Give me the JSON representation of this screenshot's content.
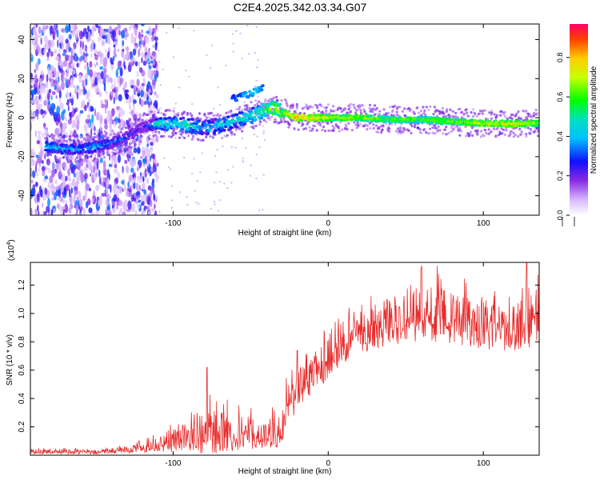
{
  "title": "C2E4.2025.342.03.34.G07",
  "chart_data": [
    {
      "type": "heatmap",
      "xlabel": "Height of straight line (km)",
      "ylabel": "Frequency (Hz)",
      "xlim": [
        -192,
        136
      ],
      "ylim": [
        -50,
        48
      ],
      "xticks": [
        -100,
        0,
        100
      ],
      "yticks": [
        -40,
        -20,
        0,
        20,
        40
      ],
      "colorbar": {
        "label": "Normalized spectral amplitude",
        "range": [
          0,
          0.97
        ],
        "ticks": [
          0.0,
          0.2,
          0.4,
          0.6,
          0.8
        ],
        "tick_labels": [
          "0.0",
          "0.2",
          "0.4",
          "0.6",
          "0.8"
        ]
      },
      "ridge": {
        "x": [
          -180,
          -170,
          -160,
          -150,
          -140,
          -130,
          -120,
          -110,
          -100,
          -90,
          -80,
          -70,
          -60,
          -50,
          -40,
          -35,
          -30,
          -20,
          -10,
          0,
          20,
          40,
          60,
          80,
          100,
          120,
          135
        ],
        "freq": [
          -15,
          -16,
          -16,
          -15,
          -13,
          -10,
          -5,
          -3,
          -3,
          -4,
          -5,
          -4,
          -2,
          1,
          4,
          5,
          3,
          0,
          0,
          0,
          0,
          -1,
          -1,
          -2,
          -3,
          -3,
          -3
        ],
        "amplitude": [
          0.45,
          0.4,
          0.4,
          0.4,
          0.35,
          0.3,
          0.2,
          0.5,
          0.45,
          0.5,
          0.4,
          0.45,
          0.45,
          0.5,
          0.6,
          0.7,
          0.65,
          0.85,
          0.8,
          0.75,
          0.7,
          0.65,
          0.65,
          0.7,
          0.75,
          0.8,
          0.7
        ]
      },
      "upper_branch": {
        "x": [
          -62,
          -55,
          -48,
          -42
        ],
        "freq": [
          10,
          11,
          13,
          15
        ],
        "amplitude": [
          0.3,
          0.35,
          0.4,
          0.3
        ]
      },
      "noise_region_x": [
        -192,
        -110
      ]
    },
    {
      "type": "line",
      "xlabel": "Height of straight line (km)",
      "ylabel": "SNR (10 * v/v)",
      "yscale_label": "(x10",
      "yscale_exponent": "4",
      "xlim": [
        -192,
        136
      ],
      "ylim": [
        0,
        1.36
      ],
      "xticks": [
        -100,
        0,
        100
      ],
      "yticks": [
        0.2,
        0.4,
        0.6,
        0.8,
        1.0,
        1.2
      ],
      "ytick_labels": [
        "0.2",
        "0.4",
        "0.6",
        "0.8",
        "1.0",
        "1.2"
      ],
      "color": "#e82c2c",
      "envelope": {
        "x": [
          -192,
          -150,
          -130,
          -115,
          -105,
          -95,
          -85,
          -75,
          -65,
          -55,
          -45,
          -40,
          -30,
          -25,
          -20,
          -10,
          0,
          10,
          20,
          30,
          40,
          50,
          60,
          70,
          80,
          90,
          100,
          110,
          120,
          130,
          136
        ],
        "base": [
          0.02,
          0.02,
          0.03,
          0.05,
          0.07,
          0.1,
          0.12,
          0.13,
          0.13,
          0.13,
          0.12,
          0.12,
          0.15,
          0.35,
          0.45,
          0.55,
          0.65,
          0.75,
          0.82,
          0.87,
          0.9,
          0.92,
          0.95,
          0.95,
          0.92,
          0.9,
          0.88,
          0.85,
          0.85,
          0.9,
          0.95
        ],
        "spread": [
          0.02,
          0.02,
          0.03,
          0.05,
          0.08,
          0.12,
          0.18,
          0.2,
          0.18,
          0.15,
          0.12,
          0.12,
          0.15,
          0.2,
          0.22,
          0.2,
          0.18,
          0.18,
          0.2,
          0.2,
          0.22,
          0.22,
          0.25,
          0.25,
          0.22,
          0.22,
          0.22,
          0.22,
          0.22,
          0.25,
          0.3
        ]
      },
      "peaks": [
        {
          "x": -78,
          "y": 0.62
        },
        {
          "x": -20,
          "y": 0.74
        },
        {
          "x": 60,
          "y": 1.32
        },
        {
          "x": 128,
          "y": 1.36
        }
      ]
    }
  ]
}
